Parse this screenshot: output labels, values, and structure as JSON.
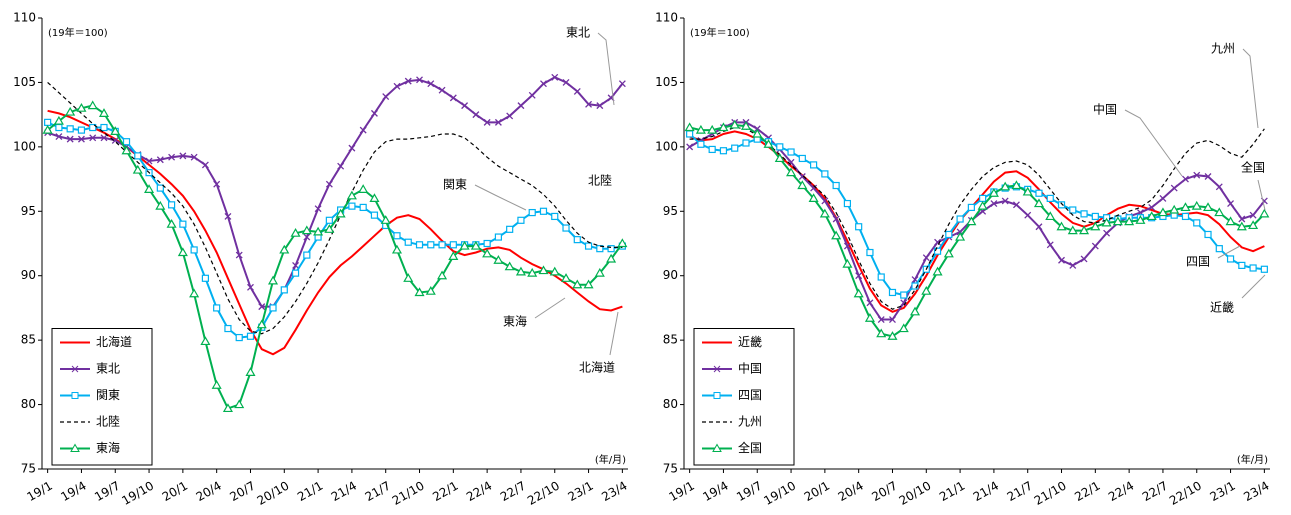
{
  "chart_data": [
    {
      "type": "line",
      "ylabel": "(19年＝100)",
      "xlabel": "(年/月)",
      "categories": [
        "19/1",
        null,
        null,
        "19/4",
        null,
        null,
        "19/7",
        null,
        null,
        "19/10",
        null,
        null,
        "20/1",
        null,
        null,
        "20/4",
        null,
        null,
        "20/7",
        null,
        null,
        "20/10",
        null,
        null,
        "21/1",
        null,
        null,
        "21/4",
        null,
        null,
        "21/7",
        null,
        null,
        "21/10",
        null,
        null,
        "22/1",
        null,
        null,
        "22/4",
        null,
        null,
        "22/7",
        null,
        null,
        "22/10",
        null,
        null,
        "23/1",
        null,
        null,
        "23/4"
      ],
      "ylim": [
        75,
        110
      ],
      "yticks": [
        75,
        80,
        85,
        90,
        95,
        100,
        105,
        110
      ],
      "legend": "lower left",
      "series": [
        {
          "name": "北海道",
          "color": "#ff0000",
          "marker": "none",
          "dash": false,
          "values": [
            102.8,
            102.6,
            102.3,
            101.9,
            101.5,
            101.1,
            100.6,
            100.0,
            99.3,
            98.6,
            97.9,
            97.1,
            96.2,
            95.0,
            93.5,
            91.8,
            89.8,
            87.8,
            85.8,
            84.3,
            83.9,
            84.4,
            85.8,
            87.3,
            88.7,
            89.9,
            90.8,
            91.5,
            92.3,
            93.1,
            93.9,
            94.5,
            94.7,
            94.4,
            93.6,
            92.7,
            91.9,
            91.6,
            91.8,
            92.1,
            92.2,
            92.0,
            91.4,
            90.9,
            90.5,
            90.0,
            89.4,
            88.7,
            88.0,
            87.4,
            87.3,
            87.6
          ]
        },
        {
          "name": "東北",
          "color": "#7030a0",
          "marker": "x",
          "dash": false,
          "values": [
            101.1,
            100.8,
            100.6,
            100.6,
            100.7,
            100.7,
            100.5,
            100.0,
            99.4,
            98.9,
            99.0,
            99.2,
            99.3,
            99.2,
            98.6,
            97.1,
            94.6,
            91.6,
            89.1,
            87.6,
            87.6,
            88.9,
            90.8,
            93.0,
            95.2,
            97.1,
            98.5,
            99.9,
            101.3,
            102.6,
            103.9,
            104.7,
            105.1,
            105.2,
            104.9,
            104.4,
            103.8,
            103.2,
            102.5,
            101.9,
            101.9,
            102.4,
            103.2,
            104.0,
            104.9,
            105.4,
            105.0,
            104.3,
            103.3,
            103.2,
            103.8,
            104.9
          ]
        },
        {
          "name": "関東",
          "color": "#00b0f0",
          "marker": "square",
          "dash": false,
          "values": [
            101.9,
            101.5,
            101.4,
            101.3,
            101.5,
            101.5,
            101.2,
            100.4,
            99.3,
            98.0,
            96.8,
            95.5,
            94.0,
            92.0,
            89.8,
            87.5,
            85.9,
            85.2,
            85.3,
            86.0,
            87.5,
            88.9,
            90.2,
            91.6,
            93.0,
            94.3,
            95.1,
            95.4,
            95.3,
            94.7,
            93.9,
            93.1,
            92.6,
            92.4,
            92.4,
            92.4,
            92.4,
            92.4,
            92.4,
            92.5,
            93.0,
            93.6,
            94.3,
            94.9,
            95.0,
            94.6,
            93.7,
            92.8,
            92.3,
            92.1,
            92.1,
            92.3
          ]
        },
        {
          "name": "北陸",
          "color": "#000000",
          "marker": "none",
          "dash": true,
          "values": [
            105.0,
            104.2,
            103.4,
            102.6,
            101.8,
            101.1,
            100.4,
            99.6,
            98.8,
            98.0,
            97.2,
            96.4,
            95.4,
            94.0,
            92.2,
            90.2,
            88.2,
            86.6,
            85.7,
            85.5,
            85.9,
            86.8,
            88.0,
            89.4,
            91.0,
            92.8,
            94.7,
            96.5,
            98.2,
            99.6,
            100.4,
            100.6,
            100.6,
            100.7,
            100.8,
            101.0,
            101.0,
            100.7,
            100.0,
            99.2,
            98.5,
            98.0,
            97.5,
            97.0,
            96.3,
            95.4,
            94.3,
            93.3,
            92.6,
            92.3,
            92.2,
            92.2
          ]
        },
        {
          "name": "東海",
          "color": "#00b050",
          "marker": "triangle",
          "dash": false,
          "values": [
            101.3,
            102.0,
            102.7,
            103.0,
            103.2,
            102.6,
            101.2,
            99.7,
            98.2,
            96.7,
            95.4,
            94.0,
            91.8,
            88.6,
            84.9,
            81.5,
            79.7,
            80.0,
            82.5,
            86.2,
            89.6,
            92.0,
            93.3,
            93.5,
            93.4,
            93.6,
            94.8,
            96.2,
            96.7,
            96.0,
            94.3,
            92.0,
            89.8,
            88.7,
            88.8,
            90.0,
            91.5,
            92.3,
            92.3,
            91.7,
            91.2,
            90.7,
            90.3,
            90.2,
            90.4,
            90.3,
            89.8,
            89.3,
            89.3,
            90.2,
            91.3,
            92.5
          ]
        }
      ]
    },
    {
      "type": "line",
      "ylabel": "(19年＝100)",
      "xlabel": "(年/月)",
      "categories": [
        "19/1",
        null,
        null,
        "19/4",
        null,
        null,
        "19/7",
        null,
        null,
        "19/10",
        null,
        null,
        "20/1",
        null,
        null,
        "20/4",
        null,
        null,
        "20/7",
        null,
        null,
        "20/10",
        null,
        null,
        "21/1",
        null,
        null,
        "21/4",
        null,
        null,
        "21/7",
        null,
        null,
        "21/10",
        null,
        null,
        "22/1",
        null,
        null,
        "22/4",
        null,
        null,
        "22/7",
        null,
        null,
        "22/10",
        null,
        null,
        "23/1",
        null,
        null,
        "23/4"
      ],
      "ylim": [
        75,
        110
      ],
      "yticks": [
        75,
        80,
        85,
        90,
        95,
        100,
        105,
        110
      ],
      "legend": "lower left",
      "series": [
        {
          "name": "近畿",
          "color": "#ff0000",
          "marker": "none",
          "dash": false,
          "values": [
            100.8,
            100.5,
            100.6,
            101.0,
            101.2,
            101.0,
            100.6,
            100.0,
            99.3,
            98.5,
            97.8,
            97.0,
            96.0,
            94.5,
            92.7,
            90.8,
            89.0,
            87.7,
            87.2,
            87.5,
            88.6,
            90.0,
            91.6,
            93.0,
            94.3,
            95.3,
            96.3,
            97.3,
            98.0,
            98.1,
            97.6,
            96.7,
            95.7,
            94.8,
            94.1,
            93.8,
            94.1,
            94.7,
            95.2,
            95.5,
            95.4,
            95.1,
            94.8,
            94.7,
            94.8,
            94.9,
            94.7,
            94.0,
            93.0,
            92.2,
            91.9,
            92.3
          ]
        },
        {
          "name": "中国",
          "color": "#7030a0",
          "marker": "x",
          "dash": false,
          "values": [
            100.0,
            100.5,
            101.0,
            101.5,
            101.9,
            101.9,
            101.4,
            100.7,
            99.8,
            98.8,
            97.7,
            96.8,
            95.8,
            94.4,
            92.3,
            90.0,
            87.9,
            86.6,
            86.6,
            87.9,
            89.7,
            91.4,
            92.6,
            93.0,
            93.4,
            94.3,
            95.0,
            95.6,
            95.8,
            95.5,
            94.7,
            93.8,
            92.4,
            91.2,
            90.8,
            91.3,
            92.3,
            93.3,
            94.1,
            94.6,
            94.9,
            95.3,
            96.0,
            96.8,
            97.5,
            97.8,
            97.7,
            96.9,
            95.6,
            94.4,
            94.7,
            95.8
          ]
        },
        {
          "name": "四国",
          "color": "#00b0f0",
          "marker": "square",
          "dash": false,
          "values": [
            101.0,
            100.2,
            99.8,
            99.7,
            99.9,
            100.3,
            100.6,
            100.4,
            100.0,
            99.6,
            99.1,
            98.6,
            97.9,
            97.0,
            95.6,
            93.8,
            91.8,
            89.9,
            88.7,
            88.5,
            89.2,
            90.5,
            91.9,
            93.2,
            94.4,
            95.3,
            96.0,
            96.5,
            96.8,
            96.9,
            96.7,
            96.4,
            96.0,
            95.5,
            95.1,
            94.8,
            94.6,
            94.5,
            94.4,
            94.5,
            94.5,
            94.5,
            94.6,
            94.7,
            94.6,
            94.1,
            93.2,
            92.1,
            91.3,
            90.8,
            90.6,
            90.5
          ]
        },
        {
          "name": "九州",
          "color": "#000000",
          "marker": "none",
          "dash": true,
          "values": [
            100.6,
            100.6,
            100.8,
            101.2,
            101.5,
            101.4,
            100.9,
            100.2,
            99.4,
            98.6,
            97.8,
            97.0,
            96.2,
            94.9,
            93.2,
            91.2,
            89.4,
            88.0,
            87.4,
            87.7,
            88.9,
            90.5,
            92.3,
            94.0,
            95.5,
            96.7,
            97.7,
            98.4,
            98.8,
            98.9,
            98.6,
            97.8,
            96.7,
            95.6,
            94.7,
            94.2,
            94.1,
            94.3,
            94.7,
            95.0,
            95.3,
            95.9,
            97.0,
            98.3,
            99.5,
            100.3,
            100.5,
            100.1,
            99.5,
            99.2,
            100.2,
            101.4
          ]
        },
        {
          "name": "全国",
          "color": "#00b050",
          "marker": "triangle",
          "dash": false,
          "values": [
            101.5,
            101.3,
            101.3,
            101.5,
            101.7,
            101.6,
            101.0,
            100.2,
            99.1,
            98.0,
            97.0,
            96.0,
            94.8,
            93.1,
            90.9,
            88.6,
            86.7,
            85.5,
            85.3,
            85.9,
            87.2,
            88.8,
            90.3,
            91.7,
            93.0,
            94.2,
            95.4,
            96.4,
            96.9,
            97.0,
            96.5,
            95.6,
            94.6,
            93.8,
            93.5,
            93.5,
            93.8,
            94.1,
            94.2,
            94.2,
            94.3,
            94.6,
            94.9,
            95.1,
            95.3,
            95.4,
            95.3,
            94.9,
            94.2,
            93.8,
            93.9,
            94.8
          ]
        }
      ]
    }
  ]
}
